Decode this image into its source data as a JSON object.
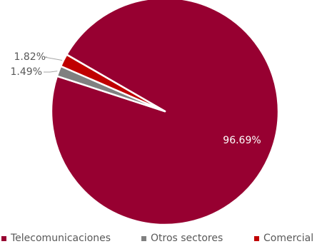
{
  "chart_data": {
    "type": "pie",
    "slices": [
      {
        "name": "Telecomunicaciones",
        "value": 96.69,
        "label": "96.69%",
        "color": "#970031"
      },
      {
        "name": "Otros sectores",
        "value": 1.49,
        "label": "1.49%",
        "color": "#808080"
      },
      {
        "name": "Comercial",
        "value": 1.82,
        "label": "1.82%",
        "color": "#c00000"
      }
    ],
    "legend_position": "bottom"
  },
  "legend": {
    "items": [
      {
        "label": "Telecomunicaciones",
        "color": "#970031"
      },
      {
        "label": "Otros sectores",
        "color": "#808080"
      },
      {
        "label": "Comercial",
        "color": "#c00000"
      }
    ]
  }
}
